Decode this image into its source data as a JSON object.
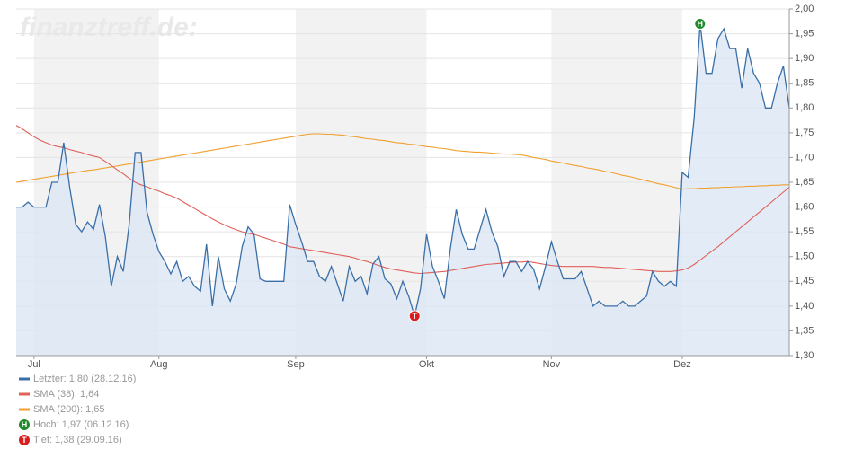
{
  "chart_data": {
    "type": "line",
    "watermark": "finanztreff.de:",
    "x": [
      "2016-06-28",
      "2016-06-29",
      "2016-06-30",
      "2016-07-01",
      "2016-07-04",
      "2016-07-05",
      "2016-07-06",
      "2016-07-07",
      "2016-07-08",
      "2016-07-11",
      "2016-07-12",
      "2016-07-13",
      "2016-07-14",
      "2016-07-15",
      "2016-07-18",
      "2016-07-19",
      "2016-07-20",
      "2016-07-21",
      "2016-07-22",
      "2016-07-25",
      "2016-07-26",
      "2016-07-27",
      "2016-07-28",
      "2016-07-29",
      "2016-08-01",
      "2016-08-02",
      "2016-08-03",
      "2016-08-04",
      "2016-08-05",
      "2016-08-08",
      "2016-08-09",
      "2016-08-10",
      "2016-08-11",
      "2016-08-12",
      "2016-08-15",
      "2016-08-16",
      "2016-08-17",
      "2016-08-18",
      "2016-08-19",
      "2016-08-22",
      "2016-08-23",
      "2016-08-24",
      "2016-08-25",
      "2016-08-26",
      "2016-08-29",
      "2016-08-30",
      "2016-08-31",
      "2016-09-01",
      "2016-09-02",
      "2016-09-05",
      "2016-09-06",
      "2016-09-07",
      "2016-09-08",
      "2016-09-09",
      "2016-09-12",
      "2016-09-13",
      "2016-09-14",
      "2016-09-15",
      "2016-09-16",
      "2016-09-19",
      "2016-09-20",
      "2016-09-21",
      "2016-09-22",
      "2016-09-23",
      "2016-09-26",
      "2016-09-27",
      "2016-09-28",
      "2016-09-29",
      "2016-09-30",
      "2016-10-03",
      "2016-10-04",
      "2016-10-05",
      "2016-10-06",
      "2016-10-07",
      "2016-10-10",
      "2016-10-11",
      "2016-10-12",
      "2016-10-13",
      "2016-10-14",
      "2016-10-17",
      "2016-10-18",
      "2016-10-19",
      "2016-10-20",
      "2016-10-21",
      "2016-10-24",
      "2016-10-25",
      "2016-10-26",
      "2016-10-27",
      "2016-10-28",
      "2016-10-31",
      "2016-11-01",
      "2016-11-02",
      "2016-11-03",
      "2016-11-04",
      "2016-11-07",
      "2016-11-08",
      "2016-11-09",
      "2016-11-10",
      "2016-11-11",
      "2016-11-14",
      "2016-11-15",
      "2016-11-16",
      "2016-11-17",
      "2016-11-18",
      "2016-11-21",
      "2016-11-22",
      "2016-11-23",
      "2016-11-24",
      "2016-11-25",
      "2016-11-28",
      "2016-11-29",
      "2016-11-30",
      "2016-12-01",
      "2016-12-02",
      "2016-12-05",
      "2016-12-06",
      "2016-12-07",
      "2016-12-08",
      "2016-12-09",
      "2016-12-12",
      "2016-12-13",
      "2016-12-14",
      "2016-12-15",
      "2016-12-16",
      "2016-12-19",
      "2016-12-20",
      "2016-12-21",
      "2016-12-22",
      "2016-12-23",
      "2016-12-27",
      "2016-12-28"
    ],
    "series": [
      {
        "name": "Letzter: 1,80 (28.12.16)",
        "color": "#3a6fa8",
        "fill": "#dce7f4",
        "values": [
          1.6,
          1.6,
          1.61,
          1.6,
          1.6,
          1.6,
          1.65,
          1.65,
          1.73,
          1.64,
          1.565,
          1.55,
          1.57,
          1.555,
          1.605,
          1.54,
          1.44,
          1.5,
          1.47,
          1.565,
          1.71,
          1.71,
          1.59,
          1.545,
          1.51,
          1.49,
          1.465,
          1.49,
          1.45,
          1.46,
          1.44,
          1.43,
          1.525,
          1.4,
          1.5,
          1.435,
          1.41,
          1.445,
          1.52,
          1.56,
          1.545,
          1.455,
          1.45,
          1.45,
          1.45,
          1.45,
          1.605,
          1.565,
          1.53,
          1.49,
          1.49,
          1.46,
          1.45,
          1.48,
          1.445,
          1.41,
          1.48,
          1.45,
          1.46,
          1.425,
          1.485,
          1.5,
          1.455,
          1.445,
          1.415,
          1.45,
          1.42,
          1.38,
          1.435,
          1.545,
          1.48,
          1.45,
          1.415,
          1.515,
          1.595,
          1.545,
          1.515,
          1.515,
          1.555,
          1.595,
          1.55,
          1.52,
          1.46,
          1.49,
          1.49,
          1.47,
          1.49,
          1.475,
          1.435,
          1.48,
          1.53,
          1.49,
          1.455,
          1.455,
          1.455,
          1.47,
          1.435,
          1.4,
          1.41,
          1.4,
          1.4,
          1.4,
          1.41,
          1.4,
          1.4,
          1.41,
          1.42,
          1.47,
          1.45,
          1.44,
          1.45,
          1.44,
          1.67,
          1.66,
          1.78,
          1.97,
          1.87,
          1.87,
          1.94,
          1.96,
          1.92,
          1.92,
          1.84,
          1.92,
          1.87,
          1.85,
          1.8,
          1.8,
          1.85,
          1.885,
          1.8
        ]
      },
      {
        "name": "SMA (38): 1,64",
        "color": "#e0605a",
        "values": [
          1.765,
          1.758,
          1.75,
          1.742,
          1.735,
          1.73,
          1.725,
          1.722,
          1.72,
          1.716,
          1.713,
          1.71,
          1.706,
          1.703,
          1.7,
          1.692,
          1.684,
          1.675,
          1.667,
          1.658,
          1.65,
          1.645,
          1.641,
          1.636,
          1.632,
          1.627,
          1.623,
          1.618,
          1.611,
          1.604,
          1.597,
          1.59,
          1.583,
          1.576,
          1.57,
          1.564,
          1.559,
          1.554,
          1.55,
          1.547,
          1.545,
          1.541,
          1.537,
          1.533,
          1.529,
          1.525,
          1.52,
          1.518,
          1.516,
          1.514,
          1.512,
          1.51,
          1.508,
          1.506,
          1.504,
          1.502,
          1.5,
          1.497,
          1.493,
          1.49,
          1.486,
          1.482,
          1.478,
          1.475,
          1.473,
          1.471,
          1.469,
          1.467,
          1.466,
          1.467,
          1.468,
          1.469,
          1.47,
          1.472,
          1.474,
          1.476,
          1.478,
          1.48,
          1.482,
          1.484,
          1.485,
          1.486,
          1.487,
          1.488,
          1.489,
          1.489,
          1.49,
          1.488,
          1.486,
          1.484,
          1.482,
          1.481,
          1.48,
          1.48,
          1.48,
          1.48,
          1.48,
          1.48,
          1.479,
          1.478,
          1.478,
          1.477,
          1.476,
          1.475,
          1.474,
          1.473,
          1.472,
          1.471,
          1.47,
          1.47,
          1.47,
          1.471,
          1.473,
          1.477,
          1.484,
          1.493,
          1.502,
          1.511,
          1.52,
          1.53,
          1.54,
          1.55,
          1.56,
          1.57,
          1.58,
          1.59,
          1.6,
          1.61,
          1.62,
          1.63,
          1.64
        ]
      },
      {
        "name": "SMA (200): 1,65",
        "color": "#f0a030",
        "values": [
          1.65,
          1.652,
          1.654,
          1.656,
          1.658,
          1.66,
          1.662,
          1.664,
          1.666,
          1.668,
          1.67,
          1.672,
          1.674,
          1.675,
          1.677,
          1.679,
          1.681,
          1.683,
          1.685,
          1.687,
          1.689,
          1.691,
          1.693,
          1.695,
          1.697,
          1.699,
          1.701,
          1.703,
          1.705,
          1.707,
          1.709,
          1.711,
          1.713,
          1.715,
          1.717,
          1.719,
          1.721,
          1.723,
          1.725,
          1.727,
          1.729,
          1.731,
          1.733,
          1.735,
          1.737,
          1.739,
          1.741,
          1.743,
          1.745,
          1.747,
          1.748,
          1.748,
          1.747,
          1.747,
          1.746,
          1.745,
          1.743,
          1.742,
          1.74,
          1.738,
          1.737,
          1.735,
          1.734,
          1.732,
          1.73,
          1.729,
          1.727,
          1.726,
          1.724,
          1.722,
          1.721,
          1.719,
          1.718,
          1.716,
          1.714,
          1.713,
          1.712,
          1.711,
          1.711,
          1.71,
          1.709,
          1.708,
          1.707,
          1.707,
          1.706,
          1.705,
          1.703,
          1.7,
          1.698,
          1.696,
          1.693,
          1.691,
          1.689,
          1.686,
          1.684,
          1.682,
          1.679,
          1.677,
          1.675,
          1.672,
          1.67,
          1.667,
          1.664,
          1.662,
          1.659,
          1.656,
          1.653,
          1.65,
          1.647,
          1.645,
          1.642,
          1.639,
          1.636,
          1.637,
          1.637,
          1.638,
          1.638,
          1.639,
          1.639,
          1.64,
          1.64,
          1.641,
          1.641,
          1.642,
          1.642,
          1.643,
          1.643,
          1.644,
          1.644,
          1.645,
          1.645
        ]
      }
    ],
    "annotations": [
      {
        "marker": "H",
        "color": "#1f8a2a",
        "text": "Hoch: 1,97 (06.12.16)",
        "x": "2016-12-06",
        "value": 1.97
      },
      {
        "marker": "T",
        "color": "#d81e1e",
        "text": "Tief: 1,38 (29.09.16)",
        "x": "2016-09-29",
        "value": 1.38
      }
    ],
    "ylim": [
      1.3,
      2.0
    ],
    "yticks": [
      {
        "value": 1.3,
        "label": "1,30"
      },
      {
        "value": 1.35,
        "label": "1,35"
      },
      {
        "value": 1.4,
        "label": "1,40"
      },
      {
        "value": 1.45,
        "label": "1,45"
      },
      {
        "value": 1.5,
        "label": "1,50"
      },
      {
        "value": 1.55,
        "label": "1,55"
      },
      {
        "value": 1.6,
        "label": "1,60"
      },
      {
        "value": 1.65,
        "label": "1,65"
      },
      {
        "value": 1.7,
        "label": "1,70"
      },
      {
        "value": 1.75,
        "label": "1,75"
      },
      {
        "value": 1.8,
        "label": "1,80"
      },
      {
        "value": 1.85,
        "label": "1,85"
      },
      {
        "value": 1.9,
        "label": "1,90"
      },
      {
        "value": 1.95,
        "label": "1,95"
      },
      {
        "value": 2.0,
        "label": "2,00"
      }
    ],
    "xticks": [
      {
        "value": "2016-07-01",
        "label": "Jul"
      },
      {
        "value": "2016-08-01",
        "label": "Aug"
      },
      {
        "value": "2016-09-01",
        "label": "Sep"
      },
      {
        "value": "2016-10-03",
        "label": "Okt"
      },
      {
        "value": "2016-11-01",
        "label": "Nov"
      },
      {
        "value": "2016-12-01",
        "label": "Dez"
      }
    ],
    "grid": true
  }
}
